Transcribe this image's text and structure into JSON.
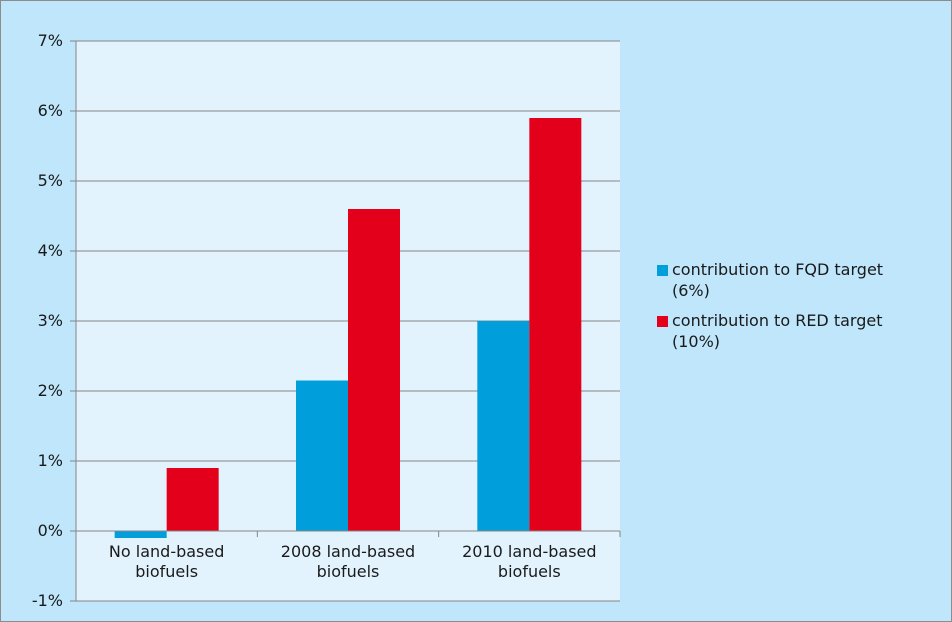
{
  "chart_data": {
    "type": "bar",
    "categories": [
      "No land-based biofuels",
      "2008 land-based biofuels",
      "2010 land-based biofuels"
    ],
    "category_lines": [
      [
        "No land-based",
        "biofuels"
      ],
      [
        "2008 land-based",
        "biofuels"
      ],
      [
        "2010 land-based",
        "biofuels"
      ]
    ],
    "series": [
      {
        "name": "contribution to FQD target (6%)",
        "name_lines": [
          "contribution to FQD target",
          "(6%)"
        ],
        "color": "#009fdb",
        "values": [
          -0.1,
          2.15,
          3.0
        ]
      },
      {
        "name": "contribution to RED target (10%)",
        "name_lines": [
          "contribution to RED target",
          "(10%)"
        ],
        "color": "#e2001a",
        "values": [
          0.9,
          4.6,
          5.9
        ]
      }
    ],
    "y_ticks": [
      -1,
      0,
      1,
      2,
      3,
      4,
      5,
      6,
      7
    ],
    "y_tick_labels": [
      "-1%",
      "0%",
      "1%",
      "2%",
      "3%",
      "4%",
      "5%",
      "6%",
      "7%"
    ],
    "ylim": [
      -1,
      7
    ],
    "xlabel": "",
    "ylabel": "",
    "title": "",
    "grid": true,
    "legend": "right",
    "colors": {
      "background": "#bfe6fb",
      "plot_area": "#e2f3fd",
      "grid": "#868686"
    }
  }
}
